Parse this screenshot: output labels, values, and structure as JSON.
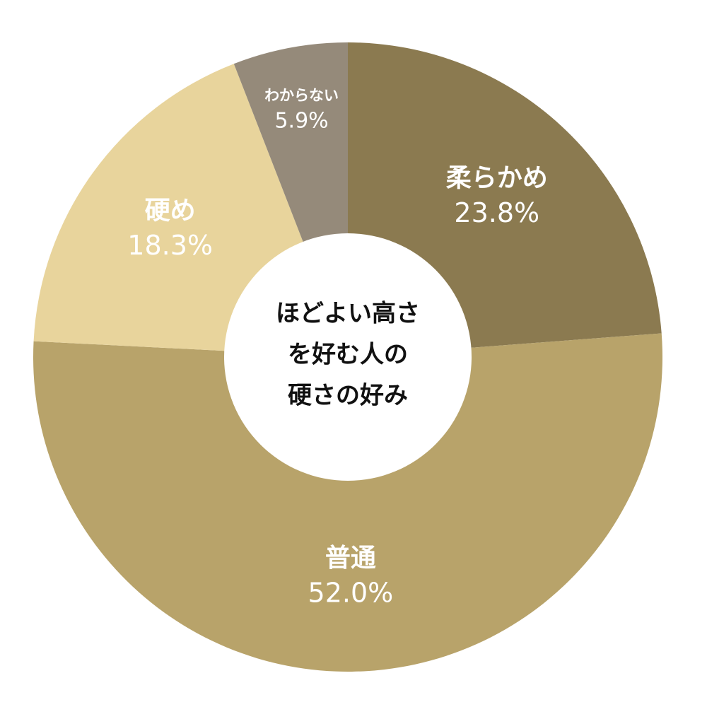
{
  "chart_data": {
    "type": "donut",
    "center_label": [
      "ほどよい高さ",
      "を好む人の",
      "硬さの好み"
    ],
    "categories": [
      "柔らかめ",
      "普通",
      "硬め",
      "わからない"
    ],
    "values": [
      23.8,
      52.0,
      18.3,
      5.9
    ],
    "value_labels": [
      "23.8%",
      "52.0%",
      "18.3%",
      "5.9%"
    ],
    "colors": [
      "#8b7a50",
      "#b8a36a",
      "#e8d49c",
      "#958a7a"
    ]
  }
}
